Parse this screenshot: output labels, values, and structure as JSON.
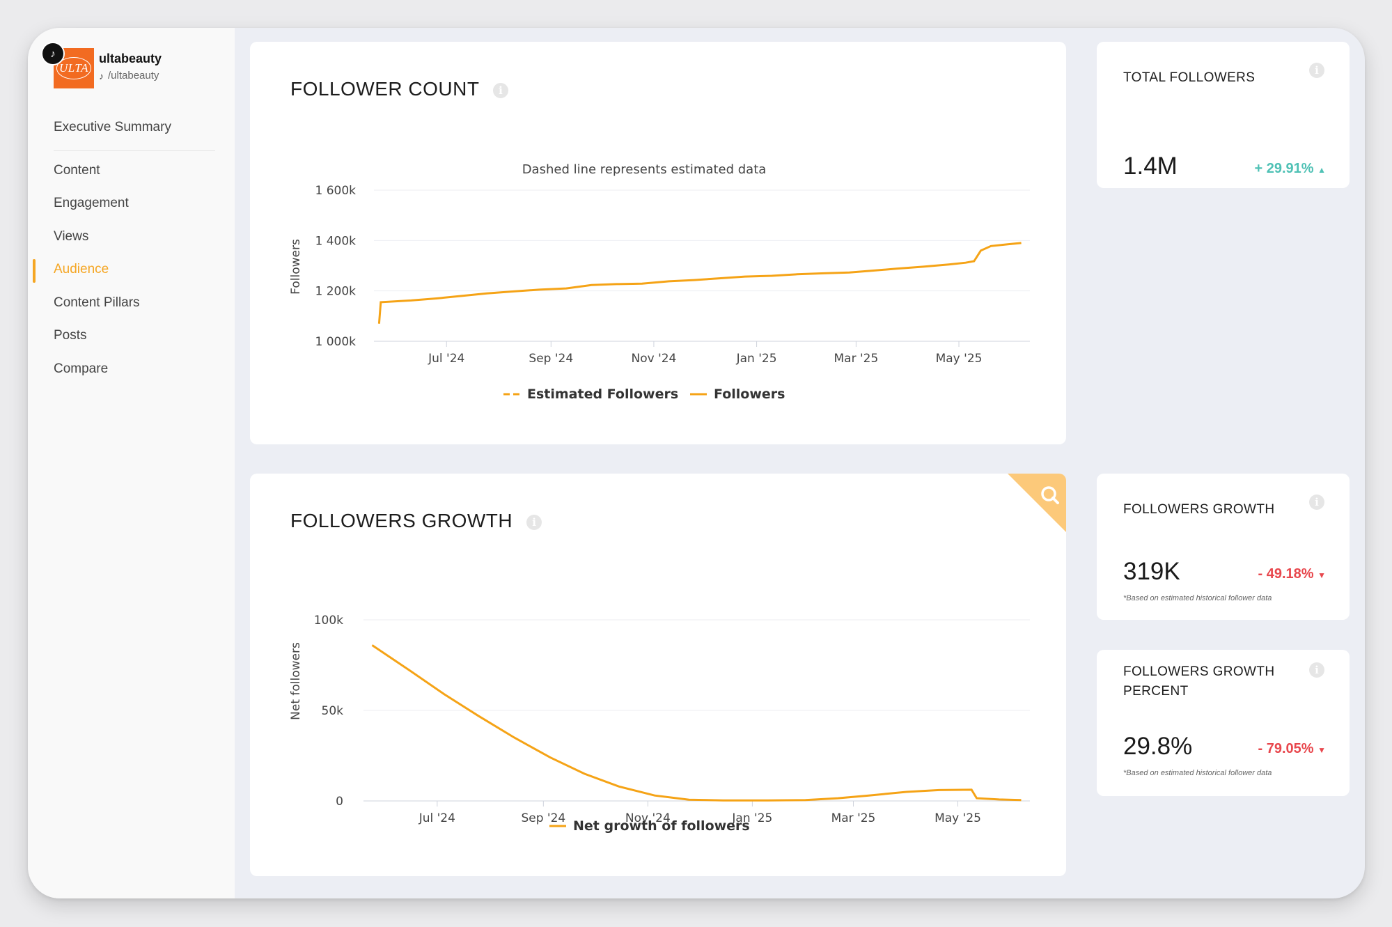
{
  "account": {
    "name": "ultabeauty",
    "handle": "/ultabeauty",
    "logo_text": "ULTA",
    "platform_icon": "tiktok-icon"
  },
  "nav": {
    "summary": "Executive Summary",
    "items": [
      "Content",
      "Engagement",
      "Views",
      "Audience",
      "Content Pillars",
      "Posts",
      "Compare"
    ],
    "active": "Audience"
  },
  "colors": {
    "accent": "#f5a623",
    "line": "#f5a316",
    "positive": "#4fc1b5",
    "negative": "#e8474d"
  },
  "follower_count": {
    "title": "FOLLOWER COUNT",
    "subtitle": "Dashed line represents estimated data",
    "legend": [
      "Estimated Followers",
      "Followers"
    ]
  },
  "followers_growth": {
    "title": "FOLLOWERS GROWTH",
    "legend": [
      "Net growth of followers"
    ]
  },
  "kpis": {
    "total": {
      "title": "TOTAL FOLLOWERS",
      "value": "1.4M",
      "delta": "+ 29.91%",
      "direction": "up"
    },
    "growth": {
      "title": "FOLLOWERS GROWTH",
      "value": "319K",
      "delta": "- 49.18%",
      "direction": "down",
      "note": "*Based on estimated historical follower data"
    },
    "growth_percent": {
      "title_line1": "FOLLOWERS GROWTH",
      "title_line2": "PERCENT",
      "value": "29.8%",
      "delta": "- 79.05%",
      "direction": "down",
      "note": "*Based on estimated historical follower data"
    }
  },
  "chart_data": [
    {
      "type": "line",
      "title": "FOLLOWER COUNT",
      "subtitle": "Dashed line represents estimated data",
      "xlabel": "",
      "ylabel": "Followers",
      "x_ticks": [
        "Jul '24",
        "Sep '24",
        "Nov '24",
        "Jan '25",
        "Mar '25",
        "May '25"
      ],
      "y_ticks": [
        "1 000k",
        "1 200k",
        "1 400k",
        "1 600k"
      ],
      "ylim": [
        1000,
        1600
      ],
      "x_range": [
        "2024-05-21",
        "2025-06-08"
      ],
      "grid": true,
      "legend_position": "bottom",
      "series": [
        {
          "name": "Estimated Followers",
          "style": "dashed",
          "points": []
        },
        {
          "name": "Followers",
          "style": "solid",
          "points": [
            [
              "2024-05-22",
              1070
            ],
            [
              "2024-05-23",
              1155
            ],
            [
              "2024-06-10",
              1162
            ],
            [
              "2024-06-25",
              1170
            ],
            [
              "2024-07-10",
              1180
            ],
            [
              "2024-07-25",
              1190
            ],
            [
              "2024-08-10",
              1198
            ],
            [
              "2024-08-25",
              1205
            ],
            [
              "2024-09-10",
              1210
            ],
            [
              "2024-09-25",
              1223
            ],
            [
              "2024-10-10",
              1227
            ],
            [
              "2024-10-25",
              1229
            ],
            [
              "2024-11-10",
              1238
            ],
            [
              "2024-11-25",
              1243
            ],
            [
              "2024-12-10",
              1250
            ],
            [
              "2024-12-25",
              1257
            ],
            [
              "2025-01-10",
              1260
            ],
            [
              "2025-01-25",
              1266
            ],
            [
              "2025-02-10",
              1270
            ],
            [
              "2025-02-25",
              1273
            ],
            [
              "2025-03-10",
              1280
            ],
            [
              "2025-03-25",
              1288
            ],
            [
              "2025-04-10",
              1296
            ],
            [
              "2025-04-25",
              1305
            ],
            [
              "2025-05-05",
              1312
            ],
            [
              "2025-05-10",
              1318
            ],
            [
              "2025-05-14",
              1360
            ],
            [
              "2025-05-20",
              1378
            ],
            [
              "2025-05-30",
              1385
            ],
            [
              "2025-06-07",
              1390
            ]
          ]
        }
      ]
    },
    {
      "type": "line",
      "title": "FOLLOWERS GROWTH",
      "xlabel": "",
      "ylabel": "Net followers",
      "x_ticks": [
        "Jul '24",
        "Sep '24",
        "Nov '24",
        "Jan '25",
        "Mar '25",
        "May '25"
      ],
      "y_ticks": [
        "0",
        "50k",
        "100k"
      ],
      "ylim": [
        0,
        100
      ],
      "x_range": [
        "2024-05-21",
        "2025-06-08"
      ],
      "grid": true,
      "legend_position": "bottom",
      "series": [
        {
          "name": "Net growth of followers",
          "style": "solid",
          "points": [
            [
              "2024-05-24",
              86
            ],
            [
              "2024-06-15",
              72
            ],
            [
              "2024-07-05",
              59
            ],
            [
              "2024-07-25",
              47
            ],
            [
              "2024-08-15",
              35
            ],
            [
              "2024-09-05",
              24
            ],
            [
              "2024-09-25",
              15
            ],
            [
              "2024-10-15",
              8
            ],
            [
              "2024-11-05",
              3
            ],
            [
              "2024-11-25",
              0.7
            ],
            [
              "2024-12-15",
              0.3
            ],
            [
              "2025-01-10",
              0.3
            ],
            [
              "2025-02-01",
              0.5
            ],
            [
              "2025-02-20",
              1.5
            ],
            [
              "2025-03-10",
              3
            ],
            [
              "2025-04-01",
              5
            ],
            [
              "2025-04-20",
              6
            ],
            [
              "2025-05-09",
              6.2
            ],
            [
              "2025-05-12",
              1.5
            ],
            [
              "2025-05-25",
              0.8
            ],
            [
              "2025-06-07",
              0.5
            ]
          ]
        }
      ]
    }
  ]
}
